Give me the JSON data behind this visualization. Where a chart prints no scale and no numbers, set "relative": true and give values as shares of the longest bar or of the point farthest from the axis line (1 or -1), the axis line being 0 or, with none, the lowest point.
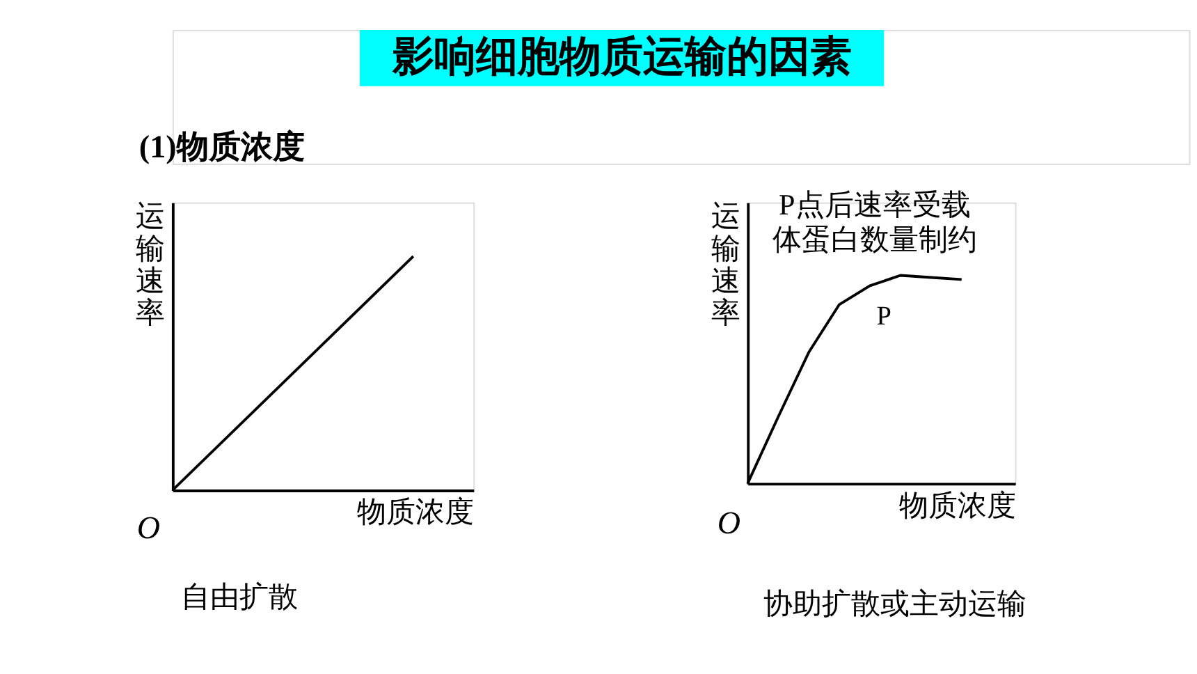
{
  "chart_data": [
    {
      "type": "line",
      "title": "影响细胞物质运输的因素",
      "subtitle": "(1)物质浓度",
      "xlabel": "物质浓度",
      "ylabel": "运输速率",
      "relative": true,
      "categories": [
        null,
        null
      ],
      "values": [
        0,
        1
      ],
      "color": "#000000",
      "grid": false,
      "annotations": [
        "O",
        "自由扩散"
      ]
    },
    {
      "type": "line",
      "xlabel": "物质浓度",
      "ylabel": "运输速率",
      "relative": true,
      "categories": [
        null,
        null,
        null,
        null,
        null,
        null,
        null,
        null
      ],
      "values": [
        0,
        0.32,
        0.63,
        0.86,
        0.95,
        1,
        0.99,
        0.98
      ],
      "color": "#000000",
      "grid": false,
      "annotations": [
        "O",
        "P点后速率受载",
        "体蛋白数量制约",
        "P",
        "协助扩散或主动运输"
      ]
    }
  ]
}
